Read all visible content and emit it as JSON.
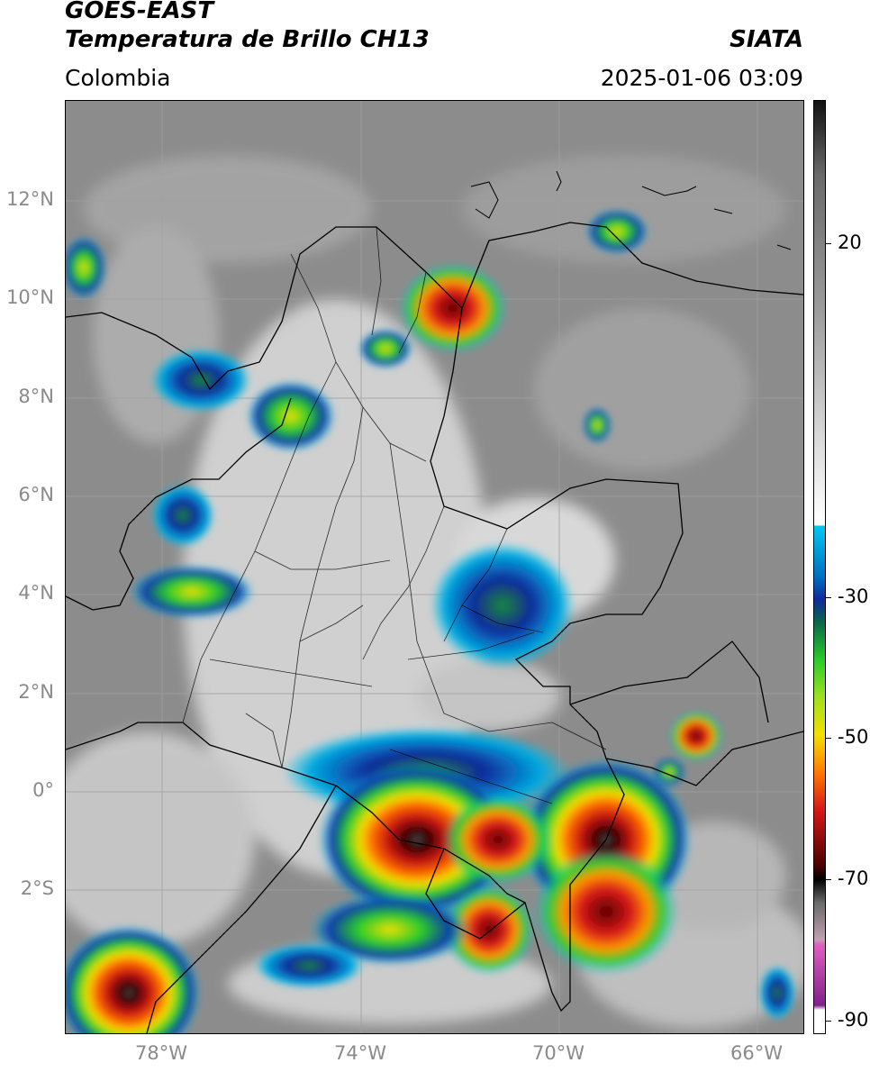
{
  "header": {
    "satellite": "GOES-EAST",
    "product": "Temperatura de Brillo CH13",
    "brand": "SIATA",
    "region": "Colombia",
    "timestamp": "2025-01-06 03:09"
  },
  "map": {
    "lat_labels": [
      "12°N",
      "10°N",
      "8°N",
      "6°N",
      "4°N",
      "2°N",
      "0°",
      "2°S"
    ],
    "lon_labels": [
      "78°W",
      "74°W",
      "70°W",
      "66°W"
    ],
    "gridline_color": "#a0a0a0",
    "border_color": "#000000"
  },
  "colorbar": {
    "labels": [
      "20",
      "-30",
      "-50",
      "-70",
      "-90"
    ],
    "colors": {
      "warm_top": "#111111",
      "gray": "#9a9a9a",
      "white": "#ffffff",
      "cyan": "#00c8f0",
      "blue": "#102a9a",
      "green": "#2acc2a",
      "yellow": "#f2e000",
      "orange": "#ff7a00",
      "red": "#d81818",
      "dark_red": "#4a0000",
      "pink": "#e060c0",
      "purple": "#80208a"
    }
  }
}
